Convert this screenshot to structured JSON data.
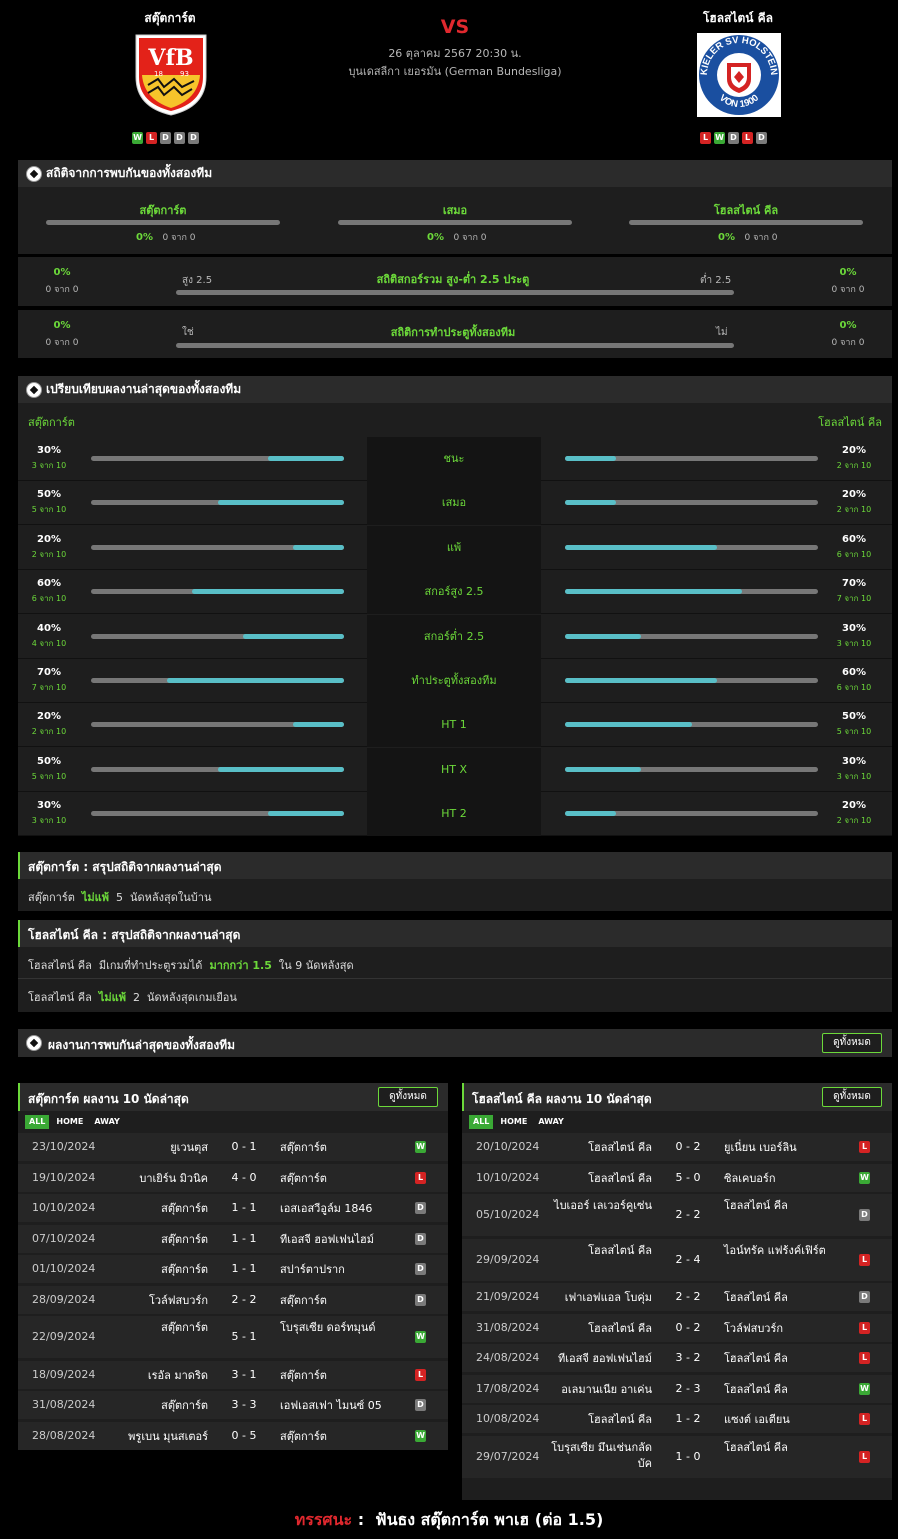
{
  "header": {
    "home": "สตุ๊ตการ์ต",
    "away": "โฮลสไตน์ คีล",
    "vs": "VS",
    "datetime": "26 ตุลาคม 2567 20:30 น.",
    "league": "บุนเดสลีกา เยอรมัน (German Bundesliga)",
    "home_form": [
      "W",
      "L",
      "D",
      "D",
      "D"
    ],
    "away_form": [
      "L",
      "W",
      "D",
      "L",
      "D"
    ],
    "home_crest_text": "VfB",
    "home_crest_years": [
      "18",
      "93"
    ],
    "away_crest_text": "KIELER SV HOLSTEIN VON 1900"
  },
  "h2h": {
    "title": "สถิติจากการพบกันของทั้งสองทีม",
    "cols": [
      {
        "label": "สตุ๊ตการ์ต",
        "pct": "0%",
        "of": "0 จาก 0"
      },
      {
        "label": "เสมอ",
        "pct": "0%",
        "of": "0 จาก 0"
      },
      {
        "label": "โฮลสไตน์ คีล",
        "pct": "0%",
        "of": "0 จาก 0"
      }
    ],
    "ou": {
      "title": "สถิติสกอร์รวม สูง-ต่ำ 2.5 ประตู",
      "left_pct": "0%",
      "left_of": "0 จาก 0",
      "right_pct": "0%",
      "right_of": "0 จาก 0",
      "over": "สูง 2.5",
      "under": "ต่ำ 2.5"
    },
    "btts": {
      "title": "สถิติการทำประตูทั้งสองทีม",
      "left_pct": "0%",
      "left_of": "0 จาก 0",
      "right_pct": "0%",
      "right_of": "0 จาก 0",
      "yes": "ใช่",
      "no": "ไม่"
    }
  },
  "compare": {
    "title": "เปรียบเทียบผลงานล่าสุดของทั้งสองทีม",
    "home": "สตุ๊ตการ์ต",
    "away": "โฮลสไตน์ คีล",
    "rows": [
      {
        "label": "ชนะ",
        "hp": "30%",
        "hof": "3 จาก 10",
        "hv": 0.3,
        "ap": "20%",
        "aof": "2 จาก 10",
        "av": 0.2
      },
      {
        "label": "เสมอ",
        "hp": "50%",
        "hof": "5 จาก 10",
        "hv": 0.5,
        "ap": "20%",
        "aof": "2 จาก 10",
        "av": 0.2
      },
      {
        "label": "แพ้",
        "hp": "20%",
        "hof": "2 จาก 10",
        "hv": 0.2,
        "ap": "60%",
        "aof": "6 จาก 10",
        "av": 0.6
      },
      {
        "label": "สกอร์สูง 2.5",
        "hp": "60%",
        "hof": "6 จาก 10",
        "hv": 0.6,
        "ap": "70%",
        "aof": "7 จาก 10",
        "av": 0.7
      },
      {
        "label": "สกอร์ต่ำ 2.5",
        "hp": "40%",
        "hof": "4 จาก 10",
        "hv": 0.4,
        "ap": "30%",
        "aof": "3 จาก 10",
        "av": 0.3
      },
      {
        "label": "ทำประตูทั้งสองทีม",
        "hp": "70%",
        "hof": "7 จาก 10",
        "hv": 0.7,
        "ap": "60%",
        "aof": "6 จาก 10",
        "av": 0.6
      },
      {
        "label": "HT 1",
        "hp": "20%",
        "hof": "2 จาก 10",
        "hv": 0.2,
        "ap": "50%",
        "aof": "5 จาก 10",
        "av": 0.5
      },
      {
        "label": "HT X",
        "hp": "50%",
        "hof": "5 จาก 10",
        "hv": 0.5,
        "ap": "30%",
        "aof": "3 จาก 10",
        "av": 0.3
      },
      {
        "label": "HT 2",
        "hp": "30%",
        "hof": "3 จาก 10",
        "hv": 0.3,
        "ap": "20%",
        "aof": "2 จาก 10",
        "av": 0.2
      }
    ]
  },
  "summary_home": {
    "title": "สตุ๊ตการ์ต : สรุปสถิติจากผลงานล่าสุด",
    "line": {
      "team": "สตุ๊ตการ์ต",
      "hl": "ไม่แพ้",
      "num": "5",
      "rest": "นัดหลังสุดในบ้าน"
    }
  },
  "summary_away": {
    "title": "โฮลสไตน์ คีล : สรุปสถิติจากผลงานล่าสุด",
    "line1": {
      "team": "โฮลสไตน์ คีล",
      "pre": "มีเกมที่ทำประตูรวมได้",
      "hl": "มากกว่า  1.5",
      "rest": "ใน 9 นัดหลังสุด"
    },
    "line2": {
      "team": "โฮลสไตน์ คีล",
      "hl": "ไม่แพ้",
      "num": "2",
      "rest": "นัดหลังสุดเกมเยือน"
    }
  },
  "recent_h2h": {
    "title": "ผลงานการพบกันล่าสุดของทั้งสองทีม",
    "btn": "ดูทั้งหมด"
  },
  "home_last": {
    "title": "สตุ๊ตการ์ต ผลงาน 10 นัดล่าสุด",
    "btn": "ดูทั้งหมด",
    "tabs": [
      "ALL",
      "HOME",
      "AWAY"
    ],
    "matches": [
      {
        "date": "23/10/2024",
        "home": "ยูเวนตุส",
        "score": "0 - 1",
        "away": "สตุ๊ตการ์ต",
        "res": "W"
      },
      {
        "date": "19/10/2024",
        "home": "บาเยิร์น มิวนิค",
        "score": "4 - 0",
        "away": "สตุ๊ตการ์ต",
        "res": "L"
      },
      {
        "date": "10/10/2024",
        "home": "สตุ๊ตการ์ต",
        "score": "1 - 1",
        "away": "เอสเอสวีอูล์ม 1846",
        "res": "D"
      },
      {
        "date": "07/10/2024",
        "home": "สตุ๊ตการ์ต",
        "score": "1 - 1",
        "away": "ทีเอสจี ฮอฟเฟนไฮม์",
        "res": "D"
      },
      {
        "date": "01/10/2024",
        "home": "สตุ๊ตการ์ต",
        "score": "1 - 1",
        "away": "สปาร์ตาปราก",
        "res": "D"
      },
      {
        "date": "28/09/2024",
        "home": "โวล์ฟสบวร์ก",
        "score": "2 - 2",
        "away": "สตุ๊ตการ์ต",
        "res": "D"
      },
      {
        "date": "22/09/2024",
        "home": "สตุ๊ตการ์ต",
        "score": "5 - 1",
        "away": "โบรุสเซีย ดอร์ทมุนด์",
        "res": "W"
      },
      {
        "date": "18/09/2024",
        "home": "เรอัล มาดริด",
        "score": "3 - 1",
        "away": "สตุ๊ตการ์ต",
        "res": "L"
      },
      {
        "date": "31/08/2024",
        "home": "สตุ๊ตการ์ต",
        "score": "3 - 3",
        "away": "เอฟเอสเฟา ไมนซ์ 05",
        "res": "D"
      },
      {
        "date": "28/08/2024",
        "home": "พรูเบน มุนสเตอร์",
        "score": "0 - 5",
        "away": "สตุ๊ตการ์ต",
        "res": "W"
      }
    ]
  },
  "away_last": {
    "title": "โฮลสไตน์ คีล ผลงาน 10 นัดล่าสุด",
    "btn": "ดูทั้งหมด",
    "tabs": [
      "ALL",
      "HOME",
      "AWAY"
    ],
    "matches": [
      {
        "date": "20/10/2024",
        "home": "โฮลสไตน์ คีล",
        "score": "0 - 2",
        "away": "ยูเนี่ยน เบอร์ลิน",
        "res": "L"
      },
      {
        "date": "10/10/2024",
        "home": "โฮลสไตน์ คีล",
        "score": "5 - 0",
        "away": "ซิลเคบอร์ก",
        "res": "W"
      },
      {
        "date": "05/10/2024",
        "home": "ไบเออร์ เลเวอร์คูเซ่น",
        "score": "2 - 2",
        "away": "โฮลสไตน์ คีล",
        "res": "D"
      },
      {
        "date": "29/09/2024",
        "home": "โฮลสไตน์ คีล",
        "score": "2 - 4",
        "away": "ไอน์ทรัค แฟร้งค์เฟิร์ต",
        "res": "L"
      },
      {
        "date": "21/09/2024",
        "home": "เฟาเอฟแอล โบคุ่ม",
        "score": "2 - 2",
        "away": "โฮลสไตน์ คีล",
        "res": "D"
      },
      {
        "date": "31/08/2024",
        "home": "โฮลสไตน์ คีล",
        "score": "0 - 2",
        "away": "โวล์ฟสบวร์ก",
        "res": "L"
      },
      {
        "date": "24/08/2024",
        "home": "ทีเอสจี ฮอฟเฟนไฮม์",
        "score": "3 - 2",
        "away": "โฮลสไตน์ คีล",
        "res": "L"
      },
      {
        "date": "17/08/2024",
        "home": "อเลมานเนีย อาเค่น",
        "score": "2 - 3",
        "away": "โฮลสไตน์ คีล",
        "res": "W"
      },
      {
        "date": "10/08/2024",
        "home": "โฮลสไตน์ คีล",
        "score": "1 - 2",
        "away": "แซงต์ เอเตียน",
        "res": "L"
      },
      {
        "date": "29/07/2024",
        "home": "โบรุสเซีย มึนเช่นกลัดบัค",
        "score": "1 - 0",
        "away": "โฮลสไตน์ คีล",
        "res": "L"
      }
    ]
  },
  "verdict": {
    "label": "ทรรศนะ",
    "colon": ":",
    "text": "ฟันธง สตุ๊ตการ์ต พาเฮ (ต่อ 1.5)"
  },
  "colors": {
    "accent": "#6cd93a",
    "bar_fill": "#59bfc7",
    "win": "#3aa935",
    "loss": "#d42323",
    "draw": "#7a7a7a",
    "verdict_label": "#e0282e"
  }
}
